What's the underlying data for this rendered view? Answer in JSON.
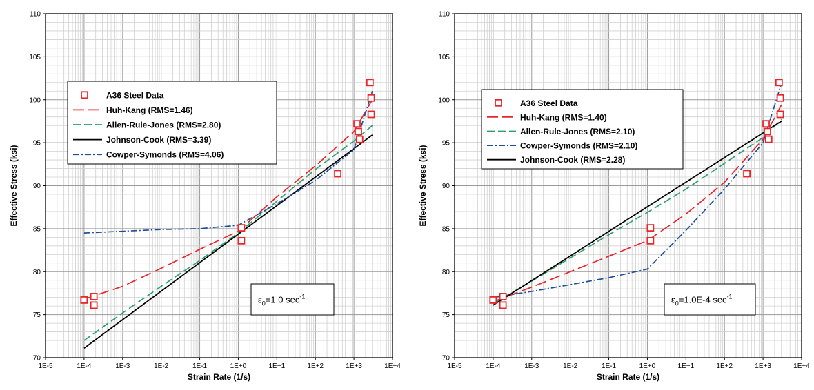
{
  "chart_data": [
    {
      "type": "line",
      "xscale": "log",
      "xlabel": "Strain Rate (1/s)",
      "ylabel": "Effective Stress (ksi)",
      "xlim": [
        1e-05,
        10000
      ],
      "ylim": [
        70,
        110
      ],
      "grid": true,
      "legend_position": "top-left",
      "x_tick_labels": [
        "1E-5",
        "1E-4",
        "1E-3",
        "1E-2",
        "1E-1",
        "1E+0",
        "1E+1",
        "1E+2",
        "1E+3",
        "1E+4"
      ],
      "y_tick_labels": [
        "70",
        "75",
        "80",
        "85",
        "90",
        "95",
        "100",
        "105",
        "110"
      ],
      "annotation": {
        "prefix": "ε",
        "sub": "0",
        "mid": "=1.0 sec",
        "sup": "-1"
      },
      "data_points": {
        "name": "A36 Steel Data",
        "color": "#e8262a",
        "x": [
          0.0001,
          0.00018,
          0.00018,
          1.2,
          1.2,
          380,
          1200,
          1300,
          1400,
          2600,
          2800,
          2800
        ],
        "y": [
          76.7,
          77.1,
          76.1,
          85.1,
          83.6,
          91.4,
          97.2,
          96.3,
          95.4,
          102.0,
          100.2,
          98.3
        ]
      },
      "series": [
        {
          "name": "Huh-Kang (RMS=1.46)",
          "color": "#e8262a",
          "dash": "long",
          "x": [
            0.0001,
            0.001,
            0.01,
            0.1,
            1,
            10,
            100,
            1000,
            3000
          ],
          "y": [
            76.8,
            78.3,
            80.4,
            82.6,
            84.7,
            88.7,
            92.3,
            96.3,
            100.0
          ]
        },
        {
          "name": "Allen-Rule-Jones (RMS=2.80)",
          "color": "#2e9e6e",
          "dash": "medium",
          "x": [
            0.0001,
            0.001,
            0.01,
            0.1,
            1,
            10,
            100,
            1000,
            3000
          ],
          "y": [
            72.0,
            75.2,
            78.3,
            81.3,
            84.5,
            88.2,
            91.9,
            95.2,
            97.0
          ]
        },
        {
          "name": "Johnson-Cook (RMS=3.39)",
          "color": "#000000",
          "dash": "solid",
          "x": [
            0.0001,
            3000
          ],
          "y": [
            71.1,
            95.9
          ]
        },
        {
          "name": "Cowper-Symonds (RMS=4.06)",
          "color": "#1f4e9c",
          "dash": "dashdot",
          "x": [
            0.0001,
            0.01,
            0.1,
            1,
            10,
            100,
            1000,
            3000
          ],
          "y": [
            84.5,
            84.9,
            85.0,
            85.4,
            87.9,
            90.6,
            94.2,
            101.0
          ]
        }
      ]
    },
    {
      "type": "line",
      "xscale": "log",
      "xlabel": "Strain Rate (1/s)",
      "ylabel": "Effective Stress (ksi)",
      "xlim": [
        1e-05,
        10000
      ],
      "ylim": [
        70,
        110
      ],
      "grid": true,
      "legend_position": "top-left",
      "x_tick_labels": [
        "1E-5",
        "1E-4",
        "1E-3",
        "1E-2",
        "1E-1",
        "1E+0",
        "1E+1",
        "1E+2",
        "1E+3",
        "1E+4"
      ],
      "y_tick_labels": [
        "70",
        "75",
        "80",
        "85",
        "90",
        "95",
        "100",
        "105",
        "110"
      ],
      "annotation": {
        "prefix": "ε",
        "sub": "0",
        "mid": "=1.0E-4 sec",
        "sup": "-1"
      },
      "data_points": {
        "name": "A36 Steel Data",
        "color": "#e8262a",
        "x": [
          0.0001,
          0.00018,
          0.00018,
          1.2,
          1.2,
          380,
          1200,
          1300,
          1400,
          2600,
          2800,
          2800
        ],
        "y": [
          76.7,
          77.1,
          76.1,
          85.1,
          83.6,
          91.4,
          97.2,
          96.3,
          95.4,
          102.0,
          100.2,
          98.3
        ]
      },
      "series": [
        {
          "name": "Huh-Kang (RMS=1.40)",
          "color": "#e8262a",
          "dash": "long",
          "x": [
            0.0001,
            0.001,
            0.01,
            0.1,
            1,
            10,
            100,
            1000,
            3000
          ],
          "y": [
            76.5,
            78.2,
            80.0,
            81.8,
            83.6,
            86.7,
            90.4,
            95.4,
            99.4
          ]
        },
        {
          "name": "Allen-Rule-Jones (RMS=2.10)",
          "color": "#2e9e6e",
          "dash": "medium",
          "x": [
            0.0001,
            0.001,
            0.01,
            0.1,
            1,
            10,
            100,
            1000,
            3000
          ],
          "y": [
            76.3,
            78.9,
            81.6,
            84.3,
            86.9,
            89.6,
            92.6,
            95.6,
            97.7
          ]
        },
        {
          "name": "Cowper-Symonds (RMS=2.10)",
          "color": "#1f4e9c",
          "dash": "dashdot",
          "x": [
            0.0001,
            0.001,
            0.01,
            0.1,
            1,
            10,
            100,
            1000,
            3000
          ],
          "y": [
            77.0,
            77.7,
            78.5,
            79.3,
            80.3,
            84.8,
            89.6,
            95.0,
            101.9
          ]
        },
        {
          "name": "Johnson-Cook (RMS=2.28)",
          "color": "#000000",
          "dash": "solid",
          "x": [
            0.0001,
            3000
          ],
          "y": [
            76.1,
            97.5
          ]
        }
      ]
    }
  ]
}
